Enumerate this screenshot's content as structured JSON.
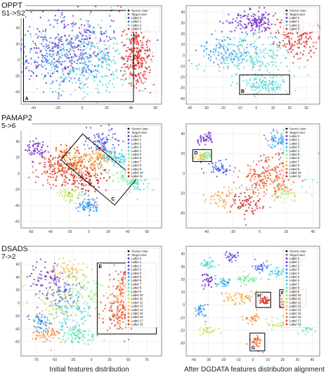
{
  "figure": {
    "captions": {
      "left": "Initial features distribution",
      "right": "After DGDATA features distribution alignment"
    }
  },
  "rows": [
    {
      "dataset": "OPPT",
      "transfer": "S1->S2",
      "legend": [
        "Source User",
        "Target User",
        "Label 0",
        "Label 1",
        "Label 2",
        "Label 3"
      ],
      "label_colors": [
        "#6a1fc7",
        "#1f6fe8",
        "#4ed4d0",
        "#e02020"
      ],
      "left_panel": {
        "xticks": [
          -40,
          -20,
          0,
          20,
          40,
          60
        ],
        "yticks": [
          -40,
          -20,
          0,
          20,
          40,
          60
        ],
        "xlim": [
          -50,
          65
        ],
        "ylim": [
          -55,
          68
        ],
        "annotations": [
          {
            "letter": "A",
            "box": [
              -48,
              -52,
              42,
              62
            ]
          }
        ],
        "clusters": [
          {
            "label": 0,
            "x": -10,
            "y": 15,
            "sx": 18,
            "sy": 20,
            "n": 260
          },
          {
            "label": 1,
            "x": -15,
            "y": 5,
            "sx": 20,
            "sy": 22,
            "n": 200
          },
          {
            "label": 2,
            "x": 5,
            "y": 0,
            "sx": 22,
            "sy": 24,
            "n": 300
          },
          {
            "label": 3,
            "x": 45,
            "y": 5,
            "sx": 6,
            "sy": 22,
            "n": 260
          }
        ]
      },
      "right_panel": {
        "xticks": [
          -40,
          -30,
          -20,
          -10,
          0,
          10,
          20,
          30
        ],
        "yticks": [
          -40,
          -30,
          -20,
          -10,
          0,
          10,
          20,
          30,
          40
        ],
        "xlim": [
          -42,
          38
        ],
        "ylim": [
          -45,
          46
        ],
        "annotations": [
          {
            "letter": "B",
            "box": [
              -10,
              -36,
              20,
              -18
            ]
          }
        ],
        "clusters": [
          {
            "label": 0,
            "x": -2,
            "y": 30,
            "sx": 8,
            "sy": 6,
            "n": 150
          },
          {
            "label": 1,
            "x": -20,
            "y": 5,
            "sx": 8,
            "sy": 8,
            "n": 70
          },
          {
            "label": 2,
            "x": -5,
            "y": 0,
            "sx": 14,
            "sy": 10,
            "n": 240
          },
          {
            "label": 2,
            "x": 5,
            "y": -27,
            "sx": 7,
            "sy": 4,
            "n": 120
          },
          {
            "label": 3,
            "x": 25,
            "y": 20,
            "sx": 6,
            "sy": 10,
            "n": 200
          }
        ]
      }
    },
    {
      "dataset": "PAMAP2",
      "transfer": "5->6",
      "legend": [
        "Source User",
        "Target User",
        "Label 0",
        "Label 1",
        "Label 2",
        "Label 3",
        "Label 4",
        "Label 5",
        "Label 6",
        "Label 7",
        "Label 8",
        "Label 9",
        "Label 10",
        "Label 11"
      ],
      "label_colors": [
        "#6a1fc7",
        "#3d4fe0",
        "#2a8fe8",
        "#2ac6e8",
        "#4ee0c0",
        "#7fe89a",
        "#b8e86a",
        "#e8d04e",
        "#f0a040",
        "#f07030",
        "#e03a20",
        "#c81818"
      ],
      "left_panel": {
        "xticks": [
          -60,
          -40,
          -20,
          0,
          20,
          40,
          60
        ],
        "yticks": [
          -60,
          -40,
          -20,
          0,
          20,
          40,
          60
        ],
        "xlim": [
          -70,
          75
        ],
        "ylim": [
          -68,
          62
        ],
        "annotations": [
          {
            "letter": "C",
            "box": "rotated"
          }
        ],
        "clusters": [
          {
            "label": 0,
            "x": -55,
            "y": 30,
            "sx": 6,
            "sy": 6,
            "n": 60
          },
          {
            "label": 1,
            "x": 15,
            "y": 40,
            "sx": 10,
            "sy": 8,
            "n": 80
          },
          {
            "label": 2,
            "x": 0,
            "y": -40,
            "sx": 6,
            "sy": 5,
            "n": 70
          },
          {
            "label": 3,
            "x": 30,
            "y": 20,
            "sx": 10,
            "sy": 6,
            "n": 90
          },
          {
            "label": 4,
            "x": 50,
            "y": -10,
            "sx": 6,
            "sy": 8,
            "n": 70
          },
          {
            "label": 5,
            "x": 40,
            "y": -5,
            "sx": 6,
            "sy": 5,
            "n": 60
          },
          {
            "label": 6,
            "x": -20,
            "y": -25,
            "sx": 6,
            "sy": 5,
            "n": 60
          },
          {
            "label": 7,
            "x": -10,
            "y": 15,
            "sx": 12,
            "sy": 10,
            "n": 80
          },
          {
            "label": 8,
            "x": 10,
            "y": 20,
            "sx": 10,
            "sy": 8,
            "n": 70
          },
          {
            "label": 9,
            "x": -5,
            "y": 10,
            "sx": 14,
            "sy": 10,
            "n": 90
          },
          {
            "label": 10,
            "x": -30,
            "y": 10,
            "sx": 14,
            "sy": 12,
            "n": 180
          },
          {
            "label": 11,
            "x": -5,
            "y": -10,
            "sx": 12,
            "sy": 10,
            "n": 100
          }
        ]
      },
      "right_panel": {
        "xticks": [
          -40,
          -20,
          0,
          20,
          40
        ],
        "yticks": [
          -40,
          -20,
          0,
          20,
          40
        ],
        "xlim": [
          -55,
          45
        ],
        "ylim": [
          -55,
          50
        ],
        "annotations": [
          {
            "letter": "D",
            "box": [
              -50,
              12,
              -36,
              24
            ]
          }
        ],
        "clusters": [
          {
            "label": 0,
            "x": -40,
            "y": 35,
            "sx": 4,
            "sy": 3,
            "n": 40
          },
          {
            "label": 1,
            "x": -30,
            "y": 5,
            "sx": 5,
            "sy": 4,
            "n": 50
          },
          {
            "label": 2,
            "x": 15,
            "y": 35,
            "sx": 6,
            "sy": 4,
            "n": 60
          },
          {
            "label": 3,
            "x": 25,
            "y": 25,
            "sx": 8,
            "sy": 6,
            "n": 80
          },
          {
            "label": 4,
            "x": 35,
            "y": 5,
            "sx": 4,
            "sy": 8,
            "n": 60
          },
          {
            "label": 5,
            "x": -40,
            "y": 18,
            "sx": 3,
            "sy": 2,
            "n": 40
          },
          {
            "label": 6,
            "x": 20,
            "y": -20,
            "sx": 6,
            "sy": 5,
            "n": 50
          },
          {
            "label": 7,
            "x": -44,
            "y": 17,
            "sx": 3,
            "sy": 2,
            "n": 40
          },
          {
            "label": 8,
            "x": -30,
            "y": -25,
            "sx": 5,
            "sy": 6,
            "n": 50
          },
          {
            "label": 9,
            "x": 0,
            "y": -10,
            "sx": 10,
            "sy": 8,
            "n": 80
          },
          {
            "label": 10,
            "x": 10,
            "y": 0,
            "sx": 10,
            "sy": 10,
            "n": 140
          },
          {
            "label": 11,
            "x": -10,
            "y": -30,
            "sx": 6,
            "sy": 6,
            "n": 70
          }
        ]
      }
    },
    {
      "dataset": "DSADS",
      "transfer": "7->2",
      "legend": [
        "Source User",
        "Target User",
        "Label 0",
        "Label 1",
        "Label 2",
        "Label 3",
        "Label 4",
        "Label 5",
        "Label 6",
        "Label 7",
        "Label 8",
        "Label 9",
        "Label 10",
        "Label 11",
        "Label 12",
        "Label 13",
        "Label 14",
        "Label 15",
        "Label 16",
        "Label 17",
        "Label 18"
      ],
      "label_colors": [
        "#6a1fc7",
        "#5a2ed6",
        "#4a45e0",
        "#3a62e8",
        "#2a82ea",
        "#22a4e8",
        "#24c2e0",
        "#34d6c8",
        "#4ee2ae",
        "#6ee896",
        "#94ea7e",
        "#bae468",
        "#d8d856",
        "#f0c448",
        "#f8a83e",
        "#f88834",
        "#f0682a",
        "#e44a22",
        "#d22c1a"
      ],
      "left_panel": {
        "xticks": [
          -75,
          -50,
          -25,
          0,
          25,
          50,
          75
        ],
        "yticks": [
          -60,
          -40,
          -20,
          0,
          20,
          40,
          60,
          80
        ],
        "xlim": [
          -95,
          95
        ],
        "ylim": [
          -82,
          88
        ],
        "annotations": [
          {
            "letter": "E",
            "box": [
              8,
              -48,
              88,
              62
            ]
          }
        ],
        "clusters": [
          {
            "label": 0,
            "x": -60,
            "y": 40,
            "sx": 12,
            "sy": 12,
            "n": 60
          },
          {
            "label": 2,
            "x": -40,
            "y": 20,
            "sx": 14,
            "sy": 14,
            "n": 70
          },
          {
            "label": 4,
            "x": -70,
            "y": -30,
            "sx": 8,
            "sy": 8,
            "n": 50
          },
          {
            "label": 6,
            "x": -30,
            "y": -10,
            "sx": 14,
            "sy": 14,
            "n": 80
          },
          {
            "label": 8,
            "x": -20,
            "y": -50,
            "sx": 14,
            "sy": 8,
            "n": 90
          },
          {
            "label": 10,
            "x": -10,
            "y": 10,
            "sx": 14,
            "sy": 18,
            "n": 90
          },
          {
            "label": 12,
            "x": -50,
            "y": 0,
            "sx": 14,
            "sy": 14,
            "n": 80
          },
          {
            "label": 13,
            "x": -30,
            "y": 50,
            "sx": 12,
            "sy": 8,
            "n": 70
          },
          {
            "label": 15,
            "x": -60,
            "y": -50,
            "sx": 10,
            "sy": 8,
            "n": 60
          },
          {
            "label": 16,
            "x": 50,
            "y": 20,
            "sx": 14,
            "sy": 16,
            "n": 180
          },
          {
            "label": 17,
            "x": 40,
            "y": -20,
            "sx": 14,
            "sy": 12,
            "n": 140
          },
          {
            "label": 18,
            "x": 55,
            "y": 45,
            "sx": 10,
            "sy": 8,
            "n": 80
          }
        ]
      },
      "right_panel": {
        "xticks": [
          -40,
          -30,
          -20,
          -10,
          0,
          10,
          20,
          30,
          40
        ],
        "yticks": [
          -30,
          -20,
          -10,
          0,
          10,
          20,
          30,
          40
        ],
        "xlim": [
          -45,
          45
        ],
        "ylim": [
          -40,
          46
        ],
        "annotations": [
          {
            "letter": "F",
            "box": [
              18,
              -2,
              36,
              12
            ]
          },
          {
            "letter": "G",
            "box": [
              -2,
              -36,
              8,
              -22
            ]
          },
          {
            "letter": "H",
            "box": [
              2,
              -2,
              12,
              10
            ]
          }
        ],
        "clusters": [
          {
            "label": 0,
            "x": -30,
            "y": 20,
            "sx": 2,
            "sy": 3,
            "n": 30
          },
          {
            "label": 1,
            "x": 30,
            "y": 35,
            "sx": 3,
            "sy": 2,
            "n": 30
          },
          {
            "label": 2,
            "x": -15,
            "y": 38,
            "sx": 3,
            "sy": 2,
            "n": 30
          },
          {
            "label": 3,
            "x": 5,
            "y": 30,
            "sx": 3,
            "sy": 2,
            "n": 30
          },
          {
            "label": 4,
            "x": -35,
            "y": -5,
            "sx": 2,
            "sy": 3,
            "n": 30
          },
          {
            "label": 5,
            "x": -20,
            "y": 18,
            "sx": 3,
            "sy": 2,
            "n": 30
          },
          {
            "label": 6,
            "x": 15,
            "y": 25,
            "sx": 3,
            "sy": 2,
            "n": 30
          },
          {
            "label": 7,
            "x": -30,
            "y": 32,
            "sx": 3,
            "sy": 2,
            "n": 30
          },
          {
            "label": 8,
            "x": 35,
            "y": -18,
            "sx": 3,
            "sy": 2,
            "n": 30
          },
          {
            "label": 9,
            "x": -5,
            "y": 20,
            "sx": 4,
            "sy": 2,
            "n": 40
          },
          {
            "label": 10,
            "x": 30,
            "y": 15,
            "sx": 3,
            "sy": 2,
            "n": 30
          },
          {
            "label": 11,
            "x": 15,
            "y": -15,
            "sx": 3,
            "sy": 2,
            "n": 30
          },
          {
            "label": 12,
            "x": -30,
            "y": -20,
            "sx": 3,
            "sy": 2,
            "n": 30
          },
          {
            "label": 13,
            "x": 25,
            "y": -5,
            "sx": 3,
            "sy": 3,
            "n": 40
          },
          {
            "label": 14,
            "x": -10,
            "y": 5,
            "sx": 6,
            "sy": 3,
            "n": 60
          },
          {
            "label": 15,
            "x": 0,
            "y": -10,
            "sx": 3,
            "sy": 2,
            "n": 30
          },
          {
            "label": 16,
            "x": 2,
            "y": -28,
            "sx": 2,
            "sy": 3,
            "n": 40
          },
          {
            "label": 17,
            "x": 26,
            "y": 5,
            "sx": 4,
            "sy": 3,
            "n": 90
          },
          {
            "label": 18,
            "x": 8,
            "y": 3,
            "sx": 2,
            "sy": 2,
            "n": 40
          }
        ]
      }
    }
  ],
  "chart_data": [
    {
      "type": "scatter",
      "title": "",
      "xlabel": "",
      "ylabel": "",
      "xlim": [
        -50,
        65
      ],
      "ylim": [
        -55,
        68
      ],
      "grid": true,
      "legend_position": "top-right",
      "series_ref": "rows.0.left_panel.clusters"
    },
    {
      "type": "scatter",
      "title": "",
      "xlabel": "",
      "ylabel": "",
      "xlim": [
        -42,
        38
      ],
      "ylim": [
        -45,
        46
      ],
      "grid": true,
      "legend_position": "top-right",
      "series_ref": "rows.0.right_panel.clusters"
    },
    {
      "type": "scatter",
      "title": "",
      "xlabel": "",
      "ylabel": "",
      "xlim": [
        -70,
        75
      ],
      "ylim": [
        -68,
        62
      ],
      "grid": true,
      "legend_position": "top-right",
      "series_ref": "rows.1.left_panel.clusters"
    },
    {
      "type": "scatter",
      "title": "",
      "xlabel": "",
      "ylabel": "",
      "xlim": [
        -55,
        45
      ],
      "ylim": [
        -55,
        50
      ],
      "grid": true,
      "legend_position": "top-right",
      "series_ref": "rows.1.right_panel.clusters"
    },
    {
      "type": "scatter",
      "title": "",
      "xlabel": "",
      "ylabel": "",
      "xlim": [
        -95,
        95
      ],
      "ylim": [
        -82,
        88
      ],
      "grid": true,
      "legend_position": "top-right",
      "series_ref": "rows.2.left_panel.clusters"
    },
    {
      "type": "scatter",
      "title": "",
      "xlabel": "",
      "ylabel": "",
      "xlim": [
        -45,
        45
      ],
      "ylim": [
        -40,
        46
      ],
      "grid": true,
      "legend_position": "top-right",
      "series_ref": "rows.2.right_panel.clusters"
    }
  ]
}
